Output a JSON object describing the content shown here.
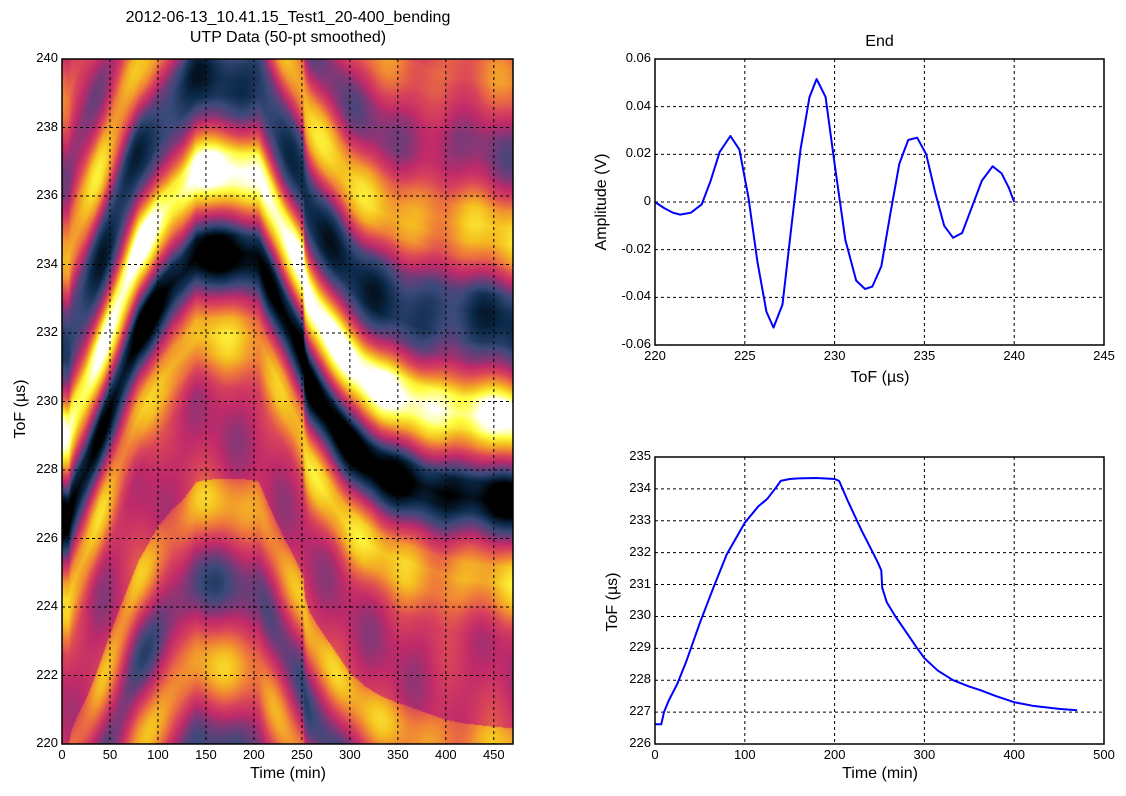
{
  "figure": {
    "suptitle_line1": "2012-06-13_10.41.15_Test1_20-400_bending",
    "suptitle_line2": "UTP Data (50-pt smoothed)"
  },
  "chart_data": [
    {
      "id": "heatmap",
      "type": "heatmap",
      "title": "2012-06-13_10.41.15_Test1_20-400_bending\nUTP Data (50-pt smoothed)",
      "xlabel": "Time (min)",
      "ylabel": "ToF (µs)",
      "xlim": [
        0,
        470
      ],
      "ylim": [
        220,
        240
      ],
      "xticks": [
        0,
        50,
        100,
        150,
        200,
        250,
        300,
        350,
        400,
        450
      ],
      "yticks": [
        220,
        222,
        224,
        226,
        228,
        230,
        232,
        234,
        236,
        238,
        240
      ],
      "grid": true,
      "colormap": [
        "#000000",
        "#0b2a4a",
        "#3a4a7a",
        "#7a3a78",
        "#c02a6a",
        "#d9445a",
        "#ef7a3a",
        "#f5c020",
        "#ffff40",
        "#ffffff"
      ],
      "description": "Waveform amplitude vs time and ToF; dark trough band follows ToF peak-tracking curve (226.6 at t=0 rising to 234.3 near t=160-205, then decaying to ~227.1 at t=470)"
    },
    {
      "id": "waveform",
      "type": "line",
      "title": "End",
      "xlabel": "ToF (µs)",
      "ylabel": "Amplitude (V)",
      "xlim": [
        220,
        245
      ],
      "ylim": [
        -0.06,
        0.06
      ],
      "xticks": [
        220,
        225,
        230,
        235,
        240,
        245
      ],
      "yticks": [
        -0.06,
        -0.04,
        -0.02,
        0,
        0.02,
        0.04,
        0.06
      ],
      "ytick_labels": [
        "-0.06",
        "-0.04",
        "-0.02",
        "0",
        "0.02",
        "0.04",
        "0.06"
      ],
      "grid": true,
      "line_color": "#0000ff",
      "x": [
        220.0,
        220.5,
        221.0,
        221.4,
        222.0,
        222.6,
        223.1,
        223.6,
        224.2,
        224.7,
        225.2,
        225.7,
        226.2,
        226.6,
        227.1,
        227.6,
        228.1,
        228.6,
        229.0,
        229.5,
        230.0,
        230.6,
        231.2,
        231.7,
        232.1,
        232.6,
        233.1,
        233.6,
        234.1,
        234.6,
        235.1,
        235.6,
        236.1,
        236.6,
        237.1,
        237.6,
        238.2,
        238.8,
        239.3,
        239.7,
        240.0
      ],
      "y": [
        0.0,
        -0.0025,
        -0.0045,
        -0.0053,
        -0.0045,
        -0.001,
        0.009,
        0.021,
        0.0277,
        0.022,
        0.002,
        -0.025,
        -0.046,
        -0.0527,
        -0.043,
        -0.01,
        0.022,
        0.044,
        0.0516,
        0.044,
        0.016,
        -0.016,
        -0.033,
        -0.0365,
        -0.0355,
        -0.027,
        -0.005,
        0.016,
        0.026,
        0.027,
        0.02,
        0.004,
        -0.01,
        -0.015,
        -0.013,
        -0.003,
        0.009,
        0.015,
        0.012,
        0.006,
        0.0
      ]
    },
    {
      "id": "tof-vs-time",
      "type": "line",
      "title": "",
      "xlabel": "Time (min)",
      "ylabel": "ToF (µs)",
      "xlim": [
        0,
        500
      ],
      "ylim": [
        226,
        235
      ],
      "xticks": [
        0,
        100,
        200,
        300,
        400,
        500
      ],
      "yticks": [
        226,
        227,
        228,
        229,
        230,
        231,
        232,
        233,
        234,
        235
      ],
      "grid": true,
      "line_color": "#0000ff",
      "x": [
        0,
        7,
        10,
        15,
        25,
        35,
        50,
        65,
        80,
        100,
        115,
        125,
        135,
        140,
        150,
        160,
        180,
        200,
        205,
        215,
        230,
        240,
        248,
        252,
        253,
        258,
        267,
        280,
        292,
        300,
        315,
        332,
        350,
        362,
        380,
        400,
        420,
        432,
        450,
        470
      ],
      "y": [
        226.62,
        226.62,
        227.0,
        227.35,
        227.9,
        228.6,
        229.8,
        230.9,
        231.95,
        232.94,
        233.45,
        233.69,
        234.05,
        234.25,
        234.31,
        234.33,
        234.34,
        234.31,
        234.25,
        233.6,
        232.7,
        232.15,
        231.7,
        231.44,
        230.9,
        230.45,
        230.03,
        229.5,
        229.0,
        228.69,
        228.3,
        228.0,
        227.8,
        227.69,
        227.5,
        227.31,
        227.2,
        227.16,
        227.1,
        227.06
      ]
    }
  ]
}
